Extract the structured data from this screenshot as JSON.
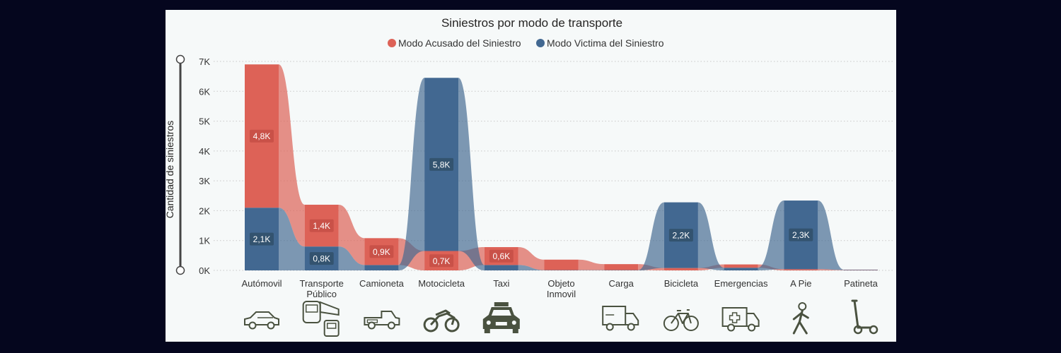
{
  "chart_data": {
    "type": "ribbon",
    "title": "Siniestros por modo de transporte",
    "ylabel": "Cantidad de siniestros",
    "xlabel": "",
    "ylim": [
      0,
      7000
    ],
    "y_ticks": [
      "0K",
      "1K",
      "2K",
      "3K",
      "4K",
      "5K",
      "6K",
      "7K"
    ],
    "y_tick_values": [
      0,
      1000,
      2000,
      3000,
      4000,
      5000,
      6000,
      7000
    ],
    "grid": true,
    "legend_position": "top-center",
    "categories": [
      "Autómovil",
      "Transporte Público",
      "Camioneta",
      "Motocicleta",
      "Taxi",
      "Objeto Inmovil",
      "Carga",
      "Bicicleta",
      "Emergencias",
      "A Pie",
      "Patineta"
    ],
    "category_lines": [
      [
        "Autómovil"
      ],
      [
        "Transporte",
        "Público"
      ],
      [
        "Camioneta"
      ],
      [
        "Motocicleta"
      ],
      [
        "Taxi"
      ],
      [
        "Objeto",
        "Inmovil"
      ],
      [
        "Carga"
      ],
      [
        "Bicicleta"
      ],
      [
        "Emergencias"
      ],
      [
        "A Pie"
      ],
      [
        "Patineta"
      ]
    ],
    "series": [
      {
        "name": "Modo Acusado del Siniestro",
        "color": "#dd6257",
        "values": [
          4800,
          1400,
          900,
          650,
          600,
          350,
          200,
          80,
          110,
          40,
          10
        ]
      },
      {
        "name": "Modo Victima del Siniestro",
        "color": "#426891",
        "values": [
          2100,
          800,
          180,
          5800,
          180,
          10,
          10,
          2200,
          90,
          2300,
          15
        ]
      }
    ],
    "stack_order": [
      [
        1,
        0
      ],
      [
        1,
        0
      ],
      [
        1,
        0
      ],
      [
        0,
        1
      ],
      [
        1,
        0
      ],
      [
        1,
        0
      ],
      [
        1,
        0
      ],
      [
        0,
        1
      ],
      [
        1,
        0
      ],
      [
        0,
        1
      ],
      [
        0,
        1
      ]
    ],
    "data_labels": [
      {
        "series": 0,
        "index": 0,
        "text": "4,8K"
      },
      {
        "series": 1,
        "index": 0,
        "text": "2,1K"
      },
      {
        "series": 0,
        "index": 1,
        "text": "1,4K"
      },
      {
        "series": 1,
        "index": 1,
        "text": "0,8K"
      },
      {
        "series": 0,
        "index": 2,
        "text": "0,9K"
      },
      {
        "series": 1,
        "index": 3,
        "text": "5,8K"
      },
      {
        "series": 0,
        "index": 3,
        "text": "0,7K"
      },
      {
        "series": 0,
        "index": 4,
        "text": "0,6K"
      },
      {
        "series": 1,
        "index": 7,
        "text": "2,2K"
      },
      {
        "series": 1,
        "index": 9,
        "text": "2,3K"
      }
    ],
    "category_icons": [
      "car-icon",
      "public-transport-icon",
      "pickup-truck-icon",
      "motorcycle-icon",
      "taxi-icon",
      "object-icon",
      "cargo-truck-icon",
      "bicycle-icon",
      "ambulance-icon",
      "pedestrian-icon",
      "scooter-icon"
    ],
    "icon_color": "#4a5240"
  }
}
